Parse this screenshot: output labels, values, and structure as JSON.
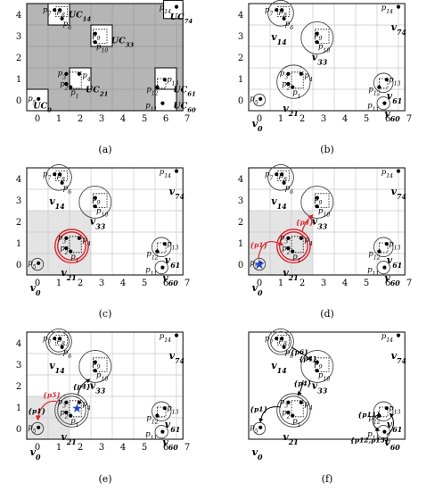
{
  "x_ticks": [
    "0",
    "1",
    "2",
    "3",
    "4",
    "5",
    "6",
    "7"
  ],
  "y_ticks": [
    "0",
    "1",
    "2",
    "3",
    "4"
  ],
  "panels": [
    {
      "caption": "(a)",
      "point_labels": [
        "p7",
        "p8",
        "p6",
        "p9",
        "p10",
        "p3",
        "p4",
        "p2",
        "p1",
        "p5",
        "p13",
        "p12",
        "p11",
        "p14"
      ],
      "cell_labels": [
        "UC14",
        "UC33",
        "UC21",
        "UC0",
        "UC61",
        "UC60",
        "UC74"
      ]
    },
    {
      "caption": "(b)",
      "point_labels": [
        "p7",
        "p8",
        "p6",
        "p9",
        "p10",
        "p3",
        "p4",
        "p2",
        "p1",
        "p5",
        "p12",
        "p13",
        "p11",
        "p14"
      ],
      "vertex_labels": [
        "v14",
        "v33",
        "v21",
        "v0",
        "v61",
        "v60",
        "v74"
      ]
    },
    {
      "caption": "(c)",
      "point_labels": [
        "p7",
        "p8",
        "p6",
        "p9",
        "p10",
        "p3",
        "p4",
        "p2",
        "p1",
        "p5",
        "p12",
        "p13",
        "p11",
        "p14"
      ],
      "vertex_labels": [
        "v14",
        "v33",
        "v21",
        "v0",
        "v61",
        "v60",
        "v74"
      ]
    },
    {
      "caption": "(d)",
      "point_labels": [
        "p7",
        "p8",
        "p6",
        "p9",
        "p10",
        "p3",
        "p4",
        "p2",
        "p1",
        "p5",
        "p12",
        "p13",
        "p11",
        "p14"
      ],
      "vertex_labels": [
        "v14",
        "v33",
        "v21",
        "v0",
        "v61",
        "v60",
        "v74"
      ],
      "edge_labels": [
        "{p1}",
        "{p4}"
      ]
    },
    {
      "caption": "(e)",
      "point_labels": [
        "p7",
        "p8",
        "p6",
        "p9",
        "p10",
        "p3",
        "p4",
        "p2",
        "p1",
        "p5",
        "p12",
        "p13",
        "p11",
        "p14"
      ],
      "vertex_labels": [
        "v14",
        "v33",
        "v21",
        "v0",
        "v61",
        "v60",
        "v74"
      ],
      "edge_labels": [
        "{p5}",
        "{p4}",
        "{p1}"
      ]
    },
    {
      "caption": "(f)",
      "point_labels": [
        "p7",
        "p8",
        "p6",
        "p9",
        "p10",
        "p3",
        "p4",
        "p2",
        "p1",
        "p5",
        "p12",
        "p13",
        "p11",
        "p14"
      ],
      "vertex_labels": [
        "v14",
        "v33",
        "v21",
        "v0",
        "v61",
        "v60",
        "v74"
      ],
      "edge_labels": [
        "{p6}",
        "{p4}",
        "{p4}",
        "{p1}",
        "{p11}",
        "{p12,p13}"
      ]
    }
  ],
  "colors": {
    "shade": "#b5b5b5",
    "light": "#e4e4e4",
    "grid": "#c8c8c8",
    "red": "#d9262e",
    "blue": "#2147c9"
  }
}
